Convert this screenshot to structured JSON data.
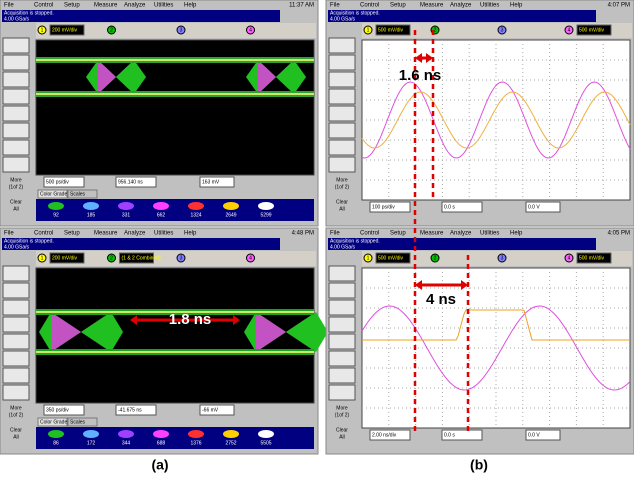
{
  "menu": [
    "File",
    "Control",
    "Setup",
    "Measure",
    "Analyze",
    "Utilities",
    "Help"
  ],
  "channel_ids": [
    "1",
    "2",
    "3",
    "4"
  ],
  "side_buttons": [
    [
      "More",
      "(1of 2)"
    ],
    [
      "Clear",
      "All"
    ]
  ],
  "panels": [
    {
      "time": "11:37 AM",
      "status": [
        "Acquisition is stopped.",
        "4.00 GSa/s"
      ],
      "channels": [
        "200 mV/div"
      ],
      "timebase": "500 ps/div",
      "delay": "956.140 ns",
      "trigger": "163 mV",
      "tabs": [
        "Color Grade",
        "Scales"
      ],
      "grades": [
        "92",
        "185",
        "331",
        "662",
        "1324",
        "2649",
        "5299"
      ]
    },
    {
      "time": "4:48 PM",
      "status": [
        "Acquisition is stopped.",
        "4.00 GSa/s"
      ],
      "channels": [
        "200 mV/div",
        "(1 & 2 Combined)"
      ],
      "timebase": "350 ps/div",
      "delay": "-41.675 ns",
      "trigger": "-66 mV",
      "tabs": [
        "Color Grade",
        "Scales"
      ],
      "grades": [
        "86",
        "172",
        "344",
        "688",
        "1376",
        "2752",
        "5505"
      ]
    },
    {
      "time": "4:07 PM",
      "status": [
        "Acquisition is stopped.",
        "4.00 GSa/s"
      ],
      "channels": [
        "500 mV/div",
        "500 mV/div"
      ],
      "timebase": "100 ps/div",
      "delay": "0.0 s",
      "trigger": "0.0 V"
    },
    {
      "time": "4:05 PM",
      "status": [
        "Acquisition is stopped.",
        "4.00 GSa/s"
      ],
      "channels": [
        "500 mV/div",
        "500 mV/div"
      ],
      "timebase": "2.00 ns/div",
      "delay": "0.0 s",
      "trigger": "0.0 V"
    }
  ],
  "annotations": [
    "1.8 ns",
    "1.6 ns",
    "4 ns"
  ],
  "captions": [
    "(a)",
    "(b)"
  ]
}
